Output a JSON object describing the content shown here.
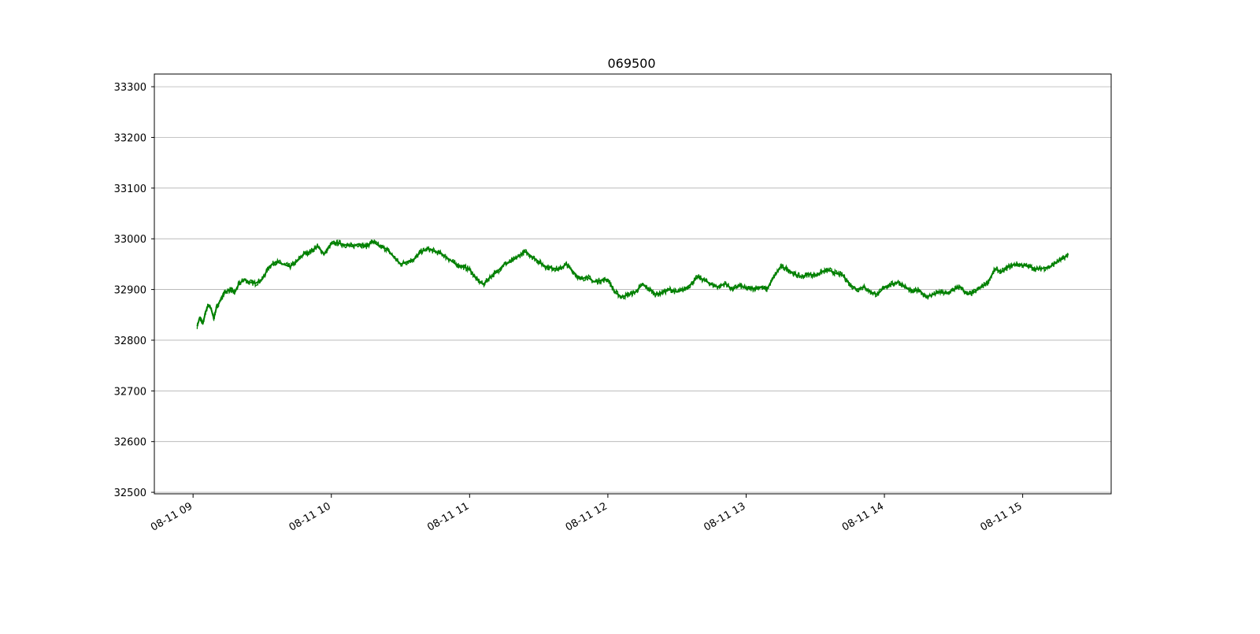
{
  "chart_data": {
    "type": "line",
    "title": "069500",
    "xlabel": "",
    "ylabel": "",
    "ylim": [
      32497,
      33325
    ],
    "y_ticks": [
      32500,
      32600,
      32700,
      32800,
      32900,
      33000,
      33100,
      33200,
      33300
    ],
    "x_ticks": [
      "08-11 09",
      "08-11 10",
      "08-11 11",
      "08-11 12",
      "08-11 13",
      "08-11 14",
      "08-11 15"
    ],
    "x_tick_hours": [
      9,
      10,
      11,
      12,
      13,
      14,
      15
    ],
    "xlim_hours": [
      8.72,
      15.64
    ],
    "grid": "horizontal",
    "legend": "none",
    "series": [
      {
        "color": "#008000",
        "x_hours": [
          9.03,
          9.05,
          9.07,
          9.09,
          9.11,
          9.13,
          9.15,
          9.17,
          9.2,
          9.23,
          9.27,
          9.3,
          9.33,
          9.37,
          9.4,
          9.45,
          9.5,
          9.55,
          9.6,
          9.65,
          9.7,
          9.75,
          9.8,
          9.85,
          9.9,
          9.95,
          10.0,
          10.05,
          10.1,
          10.15,
          10.2,
          10.25,
          10.3,
          10.35,
          10.4,
          10.45,
          10.5,
          10.55,
          10.6,
          10.65,
          10.7,
          10.75,
          10.8,
          10.85,
          10.9,
          10.95,
          11.0,
          11.05,
          11.1,
          11.15,
          11.2,
          11.25,
          11.3,
          11.35,
          11.4,
          11.45,
          11.5,
          11.55,
          11.6,
          11.65,
          11.7,
          11.75,
          11.8,
          11.85,
          11.9,
          11.95,
          12.0,
          12.05,
          12.1,
          12.15,
          12.2,
          12.25,
          12.3,
          12.35,
          12.4,
          12.45,
          12.5,
          12.55,
          12.6,
          12.65,
          12.7,
          12.75,
          12.8,
          12.85,
          12.9,
          12.95,
          13.0,
          13.05,
          13.1,
          13.15,
          13.2,
          13.25,
          13.3,
          13.35,
          13.4,
          13.45,
          13.5,
          13.55,
          13.6,
          13.65,
          13.7,
          13.75,
          13.8,
          13.85,
          13.9,
          13.95,
          14.0,
          14.05,
          14.1,
          14.15,
          14.2,
          14.25,
          14.3,
          14.35,
          14.4,
          14.45,
          14.5,
          14.55,
          14.6,
          14.65,
          14.7,
          14.75,
          14.8,
          14.85,
          14.9,
          14.95,
          15.0,
          15.05,
          15.1,
          15.15,
          15.2,
          15.25,
          15.3,
          15.33
        ],
        "values": [
          32828,
          32845,
          32832,
          32855,
          32870,
          32862,
          32843,
          32865,
          32880,
          32895,
          32900,
          32893,
          32910,
          32920,
          32915,
          32912,
          32920,
          32945,
          32955,
          32950,
          32945,
          32955,
          32970,
          32975,
          32985,
          32970,
          32990,
          32992,
          32988,
          32985,
          32990,
          32985,
          32995,
          32985,
          32980,
          32965,
          32950,
          32955,
          32960,
          32975,
          32980,
          32975,
          32970,
          32960,
          32950,
          32945,
          32940,
          32920,
          32910,
          32925,
          32935,
          32950,
          32955,
          32965,
          32975,
          32965,
          32955,
          32945,
          32942,
          32940,
          32950,
          32935,
          32920,
          32925,
          32915,
          32918,
          32920,
          32895,
          32885,
          32890,
          32895,
          32910,
          32900,
          32890,
          32895,
          32900,
          32895,
          32900,
          32910,
          32925,
          32918,
          32910,
          32905,
          32912,
          32900,
          32908,
          32902,
          32902,
          32905,
          32900,
          32925,
          32945,
          32940,
          32930,
          32925,
          32930,
          32928,
          32935,
          32938,
          32932,
          32928,
          32910,
          32900,
          32905,
          32895,
          32890,
          32905,
          32910,
          32915,
          32905,
          32895,
          32900,
          32885,
          32890,
          32895,
          32892,
          32900,
          32905,
          32890,
          32895,
          32905,
          32915,
          32940,
          32935,
          32945,
          32950,
          32948,
          32945,
          32940,
          32942,
          32945,
          32955,
          32962,
          32970
        ]
      }
    ]
  }
}
